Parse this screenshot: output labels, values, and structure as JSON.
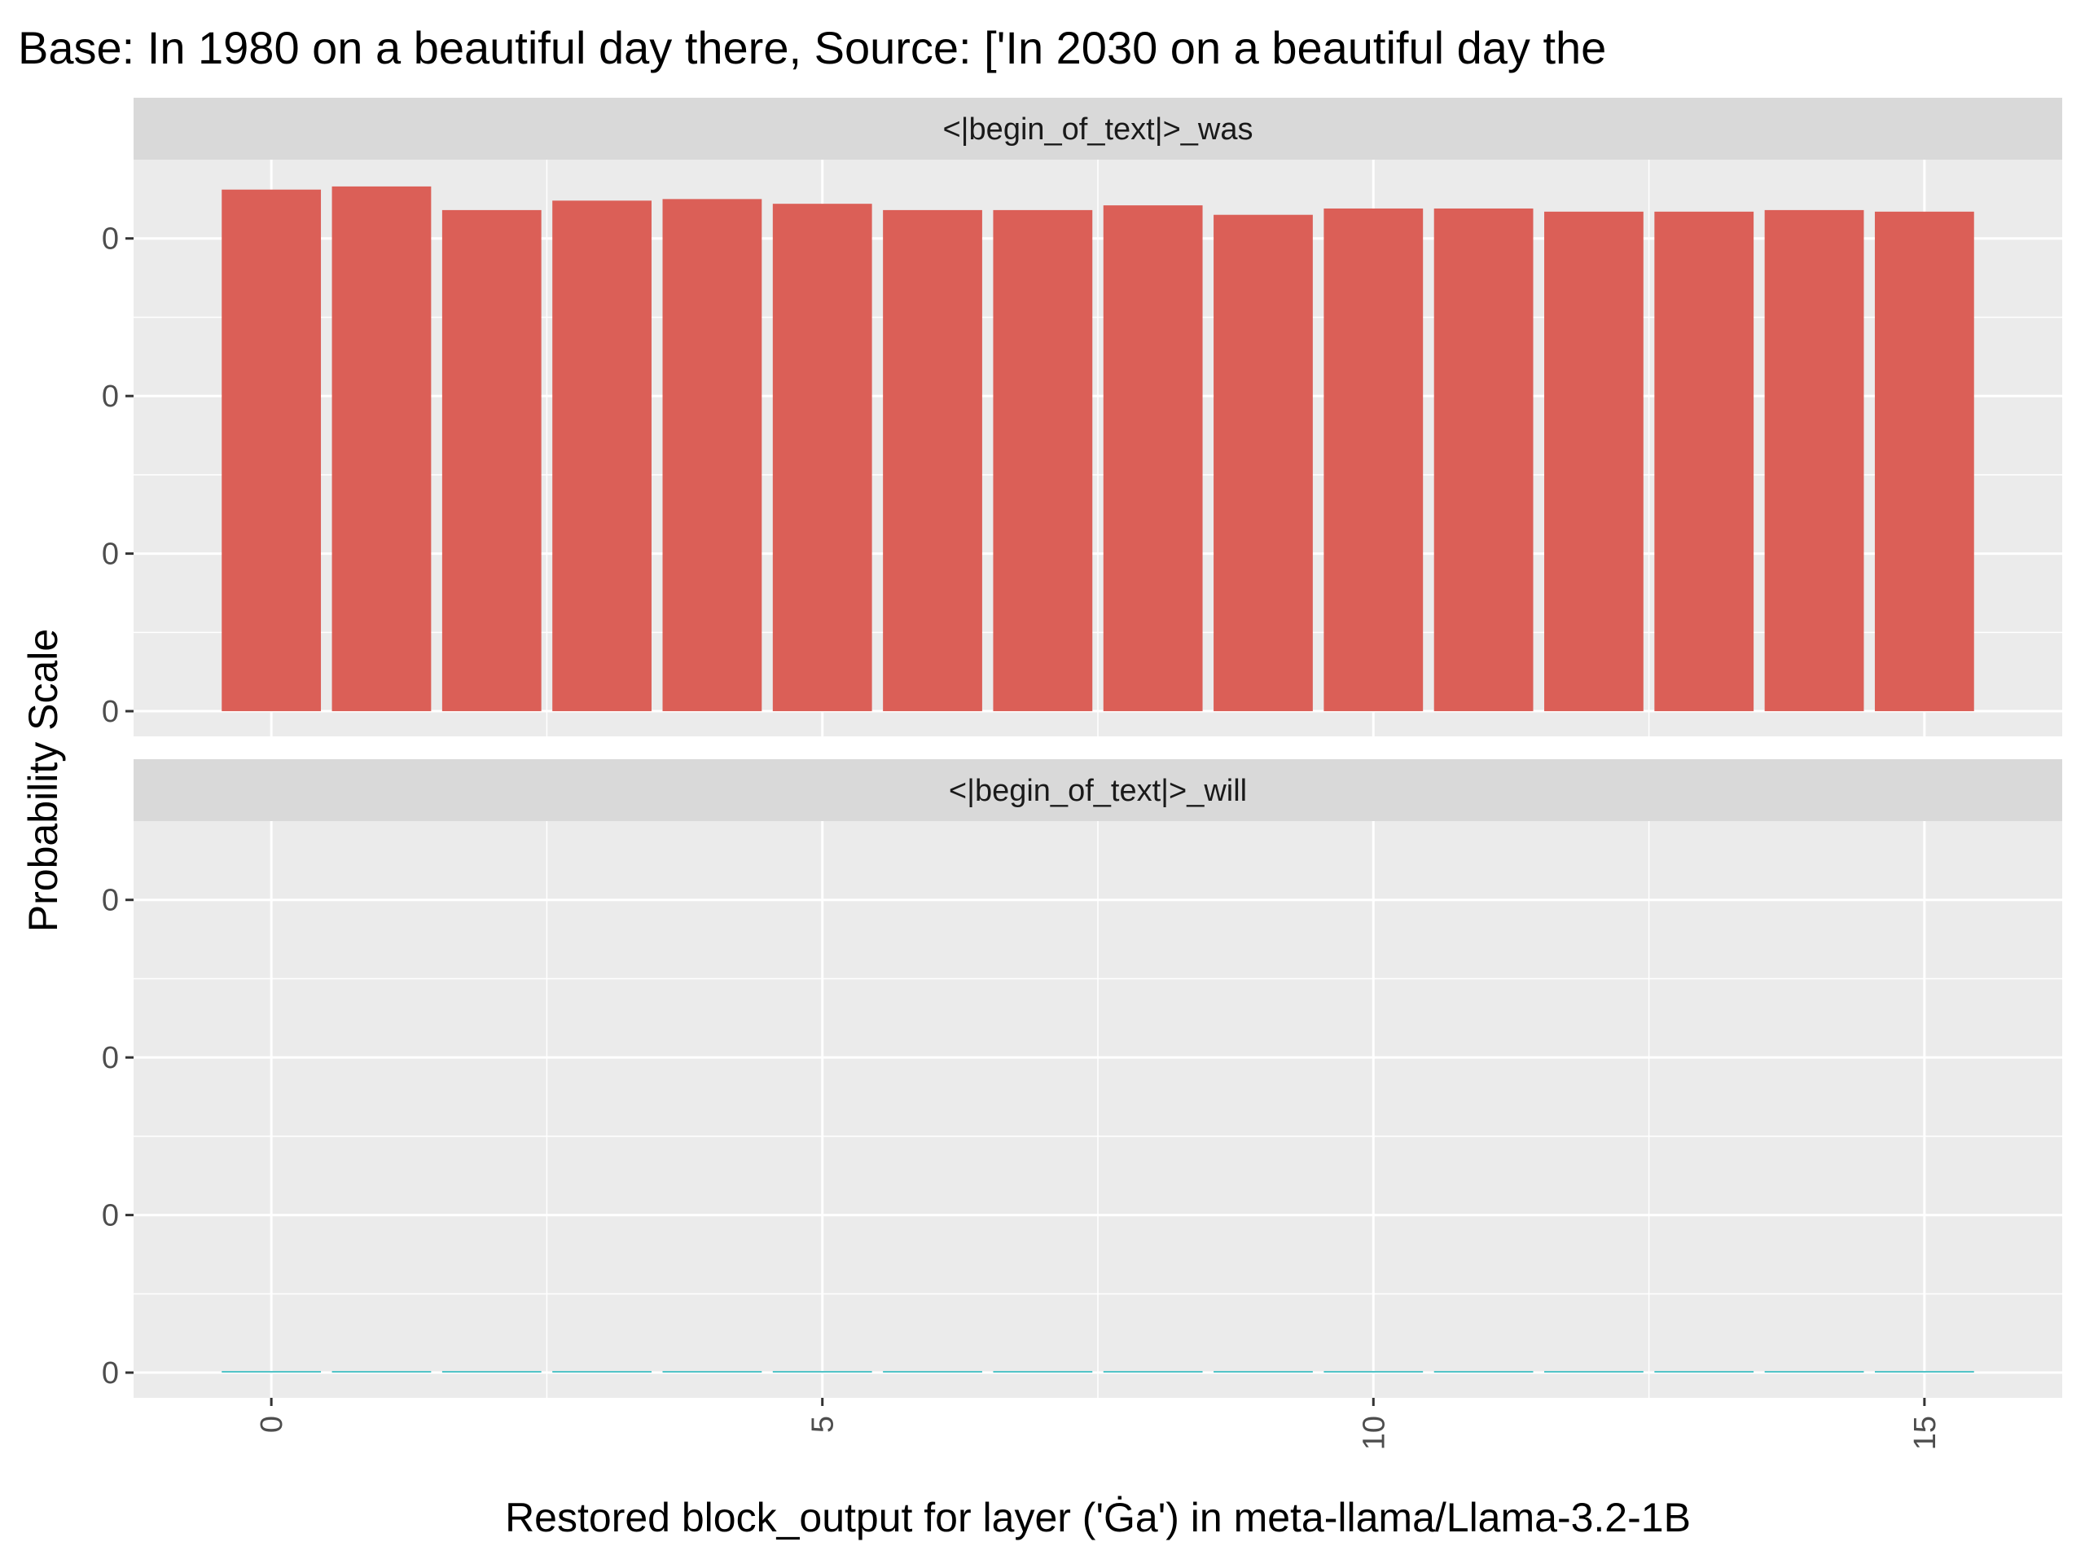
{
  "chart_data": {
    "type": "bar",
    "title": "Base: In 1980 on a beautiful day there, Source: ['In 2030 on a beautiful day the",
    "xlabel": "Restored block_output for layer ('Ġa') in meta-llama/Llama-3.2-1B",
    "ylabel": "Probability Scale",
    "x": [
      0,
      1,
      2,
      3,
      4,
      5,
      6,
      7,
      8,
      9,
      10,
      11,
      12,
      13,
      14,
      15
    ],
    "x_ticks": [
      "0",
      "5",
      "10",
      "15"
    ],
    "x_tick_values": [
      0,
      5,
      10,
      15
    ],
    "xlim": [
      -1.25,
      16.25
    ],
    "y_tick_labels": [
      "0",
      "0",
      "0",
      "0"
    ],
    "y_tick_values": [
      0,
      0.1,
      0.2,
      0.3
    ],
    "ylim": [
      -0.016,
      0.35
    ],
    "grid": true,
    "legend": "none",
    "panels": [
      {
        "label": "<|begin_of_text|>_was",
        "color": "#db5f57",
        "values": [
          0.331,
          0.333,
          0.318,
          0.324,
          0.325,
          0.322,
          0.318,
          0.318,
          0.321,
          0.315,
          0.319,
          0.319,
          0.317,
          0.317,
          0.318,
          0.317
        ]
      },
      {
        "label": "<|begin_of_text|>_will",
        "color": "#4fc3c7",
        "values": [
          0,
          0,
          0,
          0,
          0,
          0,
          0,
          0,
          0,
          0,
          0,
          0,
          0,
          0,
          0,
          0
        ]
      }
    ]
  }
}
